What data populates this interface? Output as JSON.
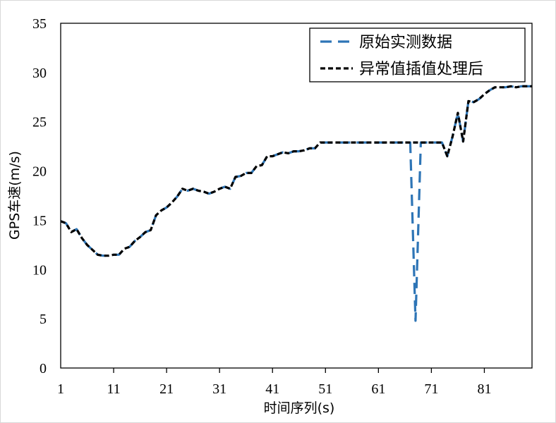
{
  "chart_data": {
    "type": "line",
    "title": "",
    "xlabel": "时间序列(s)",
    "ylabel": "GPS车速(m/s)",
    "xlim": [
      1,
      90
    ],
    "ylim": [
      0,
      35
    ],
    "xticks": [
      1,
      11,
      21,
      31,
      41,
      51,
      61,
      71,
      81
    ],
    "yticks": [
      0,
      5,
      10,
      15,
      20,
      25,
      30,
      35
    ],
    "grid": false,
    "legend_position": "top-right",
    "series": [
      {
        "name": "原始实测数据",
        "color": "#2e75b6",
        "dash": "long-dash",
        "x": [
          1,
          2,
          3,
          4,
          5,
          6,
          7,
          8,
          9,
          10,
          11,
          12,
          13,
          14,
          15,
          16,
          17,
          18,
          19,
          20,
          21,
          22,
          23,
          24,
          25,
          26,
          27,
          28,
          29,
          30,
          31,
          32,
          33,
          34,
          35,
          36,
          37,
          38,
          39,
          40,
          41,
          42,
          43,
          44,
          45,
          46,
          47,
          48,
          49,
          50,
          51,
          52,
          53,
          54,
          55,
          56,
          57,
          58,
          59,
          60,
          61,
          62,
          63,
          64,
          65,
          66,
          67,
          68,
          69,
          70,
          71,
          72,
          73,
          74,
          75,
          76,
          77,
          78,
          79,
          80,
          81,
          82,
          83,
          84,
          85,
          86,
          87,
          88,
          89,
          90
        ],
        "y": [
          14.9,
          14.7,
          13.8,
          14.1,
          13.2,
          12.5,
          12.0,
          11.5,
          11.4,
          11.4,
          11.5,
          11.5,
          12.1,
          12.3,
          12.9,
          13.3,
          13.8,
          14.0,
          15.5,
          16.0,
          16.3,
          16.8,
          17.4,
          18.2,
          18.0,
          18.2,
          18.0,
          17.9,
          17.7,
          17.9,
          18.2,
          18.4,
          18.2,
          19.4,
          19.5,
          19.8,
          19.8,
          20.5,
          20.6,
          21.5,
          21.5,
          21.7,
          21.9,
          21.8,
          22.0,
          22.0,
          22.1,
          22.3,
          22.3,
          22.9,
          22.9,
          22.9,
          22.9,
          22.9,
          22.9,
          22.9,
          22.9,
          22.9,
          22.9,
          22.9,
          22.9,
          22.9,
          22.9,
          22.9,
          22.9,
          22.9,
          22.9,
          4.8,
          22.9,
          22.9,
          22.9,
          22.9,
          22.9,
          21.5,
          23.5,
          25.9,
          23.0,
          27.1,
          27.0,
          27.3,
          27.8,
          28.2,
          28.5,
          28.5,
          28.5,
          28.6,
          28.5,
          28.6,
          28.6,
          28.6
        ]
      },
      {
        "name": "异常值插值处理后",
        "color": "#000000",
        "dash": "short-dash",
        "x": [
          1,
          2,
          3,
          4,
          5,
          6,
          7,
          8,
          9,
          10,
          11,
          12,
          13,
          14,
          15,
          16,
          17,
          18,
          19,
          20,
          21,
          22,
          23,
          24,
          25,
          26,
          27,
          28,
          29,
          30,
          31,
          32,
          33,
          34,
          35,
          36,
          37,
          38,
          39,
          40,
          41,
          42,
          43,
          44,
          45,
          46,
          47,
          48,
          49,
          50,
          51,
          52,
          53,
          54,
          55,
          56,
          57,
          58,
          59,
          60,
          61,
          62,
          63,
          64,
          65,
          66,
          67,
          68,
          69,
          70,
          71,
          72,
          73,
          74,
          75,
          76,
          77,
          78,
          79,
          80,
          81,
          82,
          83,
          84,
          85,
          86,
          87,
          88,
          89,
          90
        ],
        "y": [
          14.9,
          14.7,
          13.8,
          14.1,
          13.2,
          12.5,
          12.0,
          11.5,
          11.4,
          11.4,
          11.5,
          11.5,
          12.1,
          12.3,
          12.9,
          13.3,
          13.8,
          14.0,
          15.5,
          16.0,
          16.3,
          16.8,
          17.4,
          18.2,
          18.0,
          18.2,
          18.0,
          17.9,
          17.7,
          17.9,
          18.2,
          18.4,
          18.2,
          19.4,
          19.5,
          19.8,
          19.8,
          20.5,
          20.6,
          21.5,
          21.5,
          21.7,
          21.9,
          21.8,
          22.0,
          22.0,
          22.1,
          22.3,
          22.3,
          22.9,
          22.9,
          22.9,
          22.9,
          22.9,
          22.9,
          22.9,
          22.9,
          22.9,
          22.9,
          22.9,
          22.9,
          22.9,
          22.9,
          22.9,
          22.9,
          22.9,
          22.9,
          22.9,
          22.9,
          22.9,
          22.9,
          22.9,
          22.9,
          21.5,
          23.5,
          25.9,
          23.0,
          27.1,
          27.0,
          27.3,
          27.8,
          28.2,
          28.5,
          28.5,
          28.5,
          28.6,
          28.5,
          28.6,
          28.6,
          28.6
        ]
      }
    ]
  }
}
